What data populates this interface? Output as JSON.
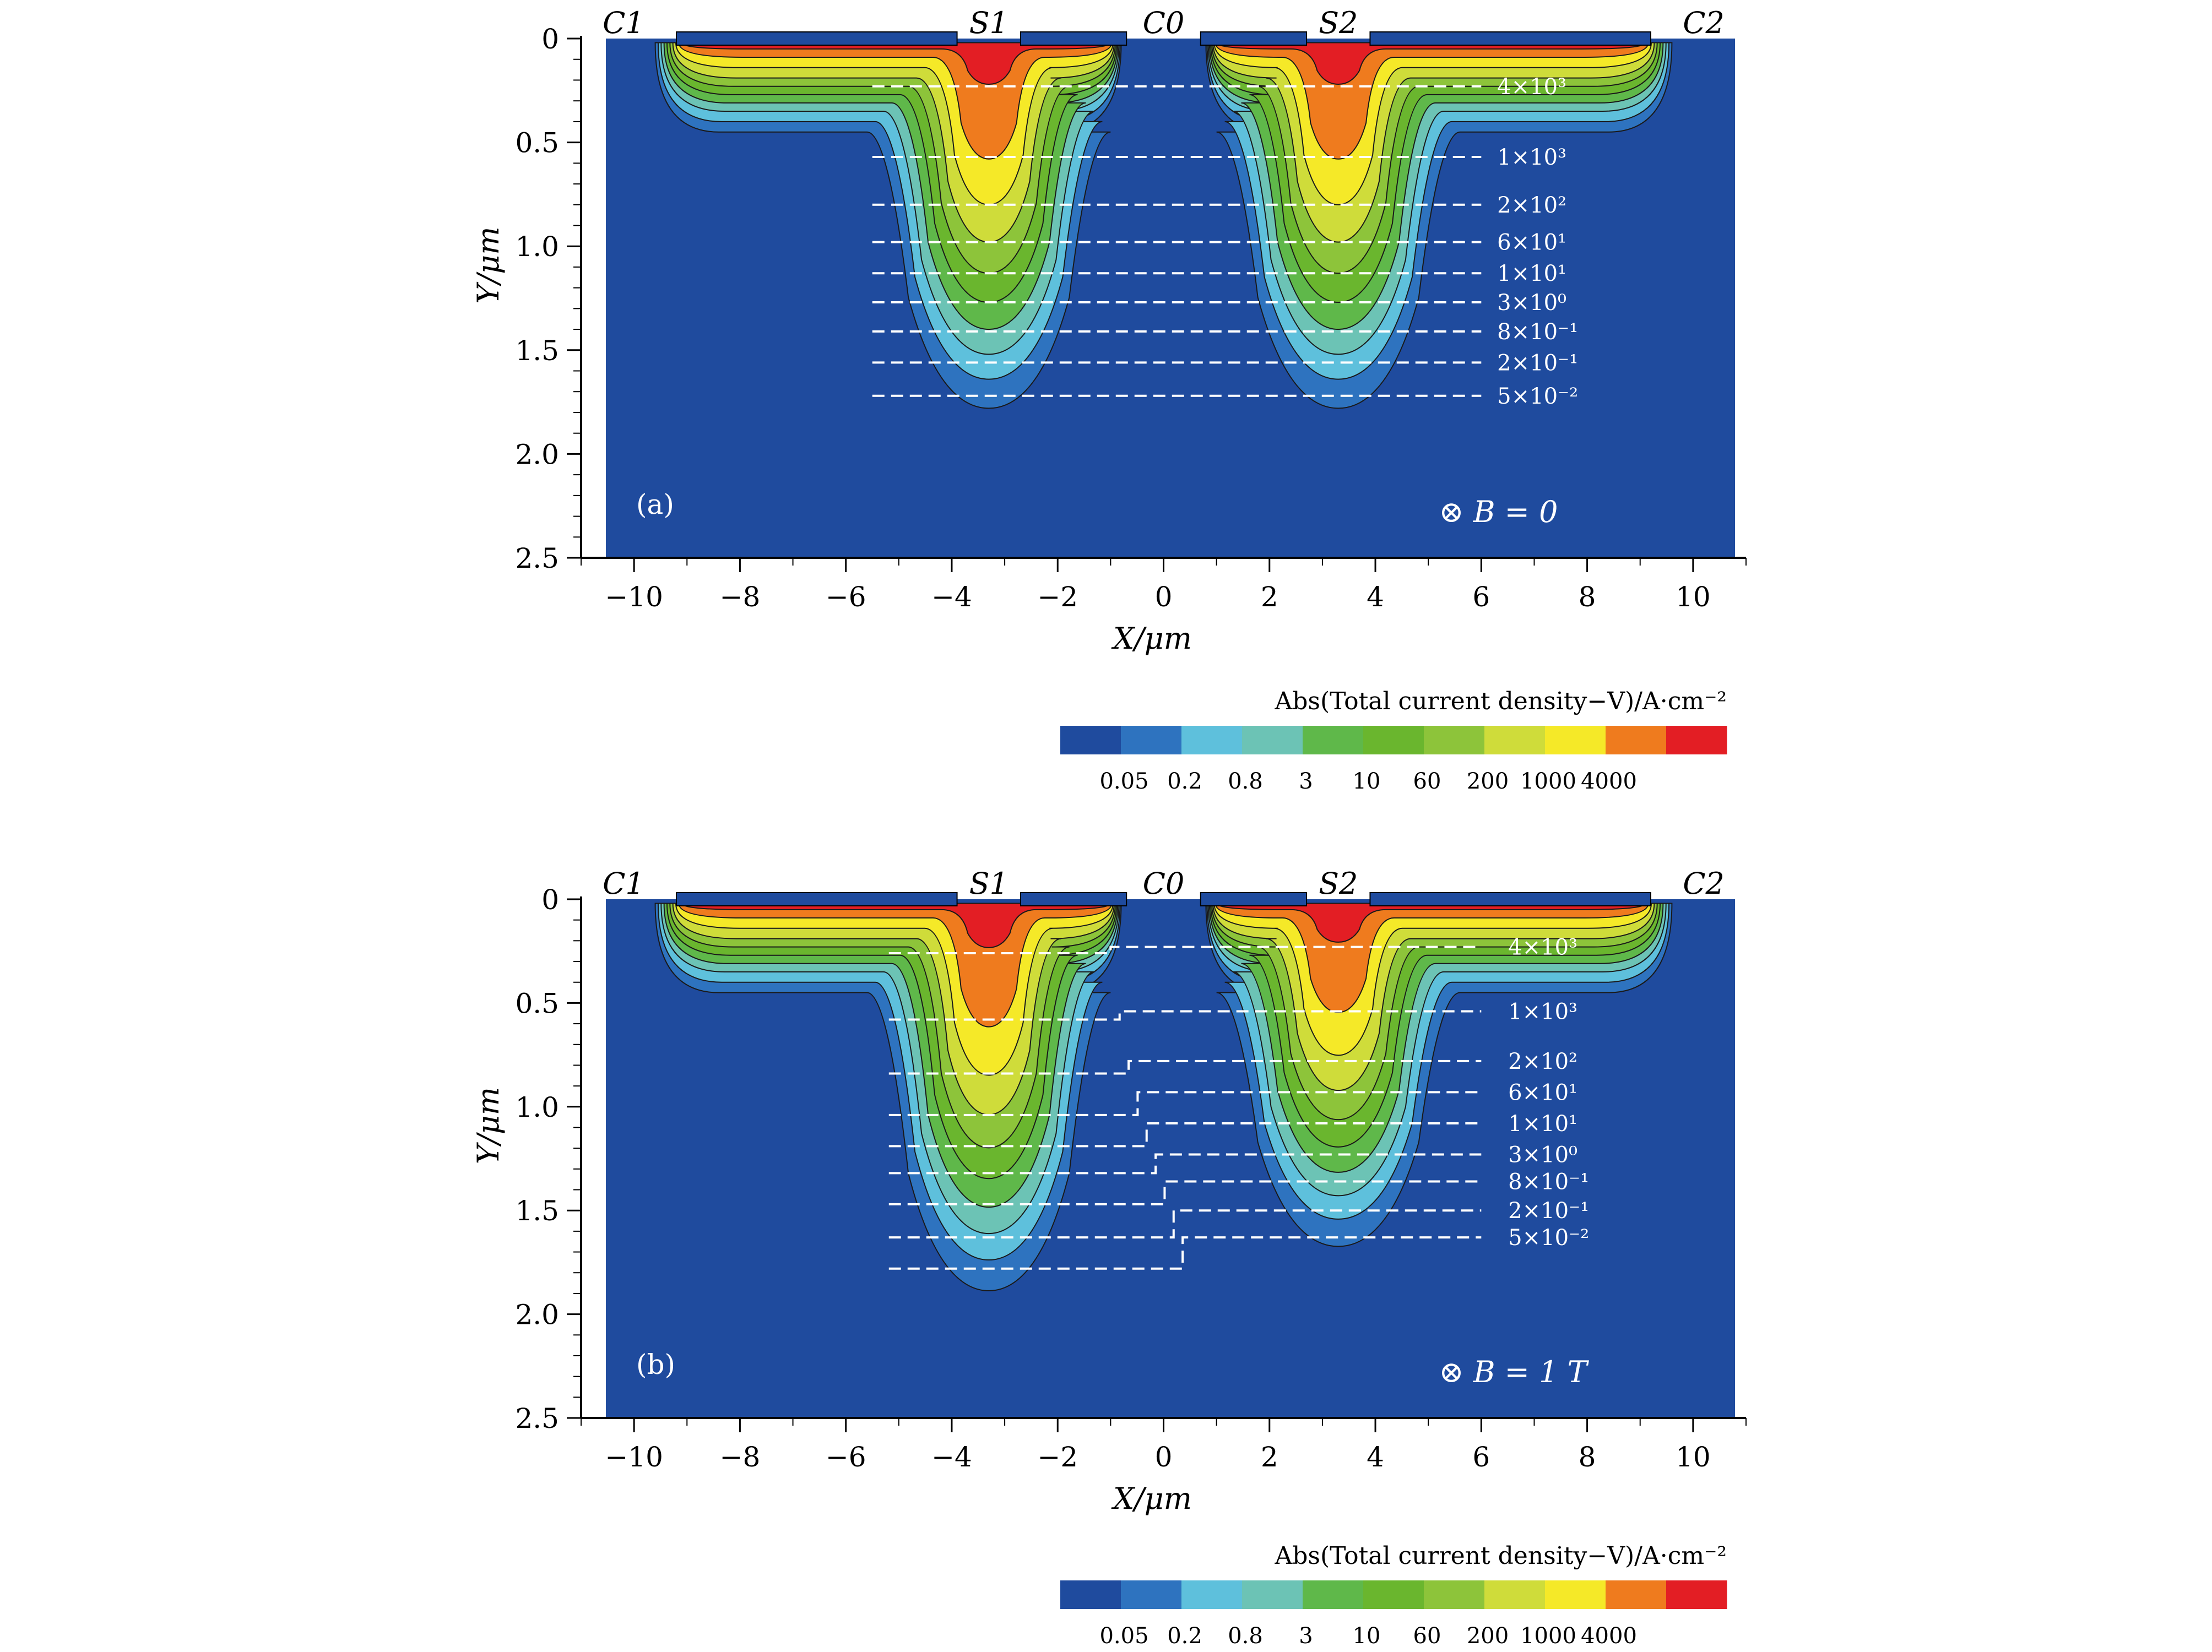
{
  "chart_data": [
    {
      "type": "heatmap",
      "panel_label": "(a)",
      "condition": "⊗ B = 0",
      "xlabel": "X/μm",
      "ylabel": "Y/μm",
      "xlim": [
        -11,
        11
      ],
      "ylim": [
        2.5,
        0
      ],
      "xticks": [
        -10,
        -8,
        -6,
        -4,
        -2,
        0,
        2,
        4,
        6,
        8,
        10
      ],
      "yticks": [
        0,
        0.5,
        1.0,
        1.5,
        2.0,
        2.5
      ],
      "contacts": [
        {
          "label": "C1",
          "x": -10.2
        },
        {
          "label": "S1",
          "x": -3.3
        },
        {
          "label": "C0",
          "x": 0
        },
        {
          "label": "S2",
          "x": 3.3
        },
        {
          "label": "C2",
          "x": 10.2
        }
      ],
      "contour_levels": [
        {
          "label": "4×10³",
          "y": 0.23
        },
        {
          "label": "1×10³",
          "y": 0.57
        },
        {
          "label": "2×10²",
          "y": 0.8
        },
        {
          "label": "6×10¹",
          "y": 0.98
        },
        {
          "label": "1×10¹",
          "y": 1.13
        },
        {
          "label": "3×10⁰",
          "y": 1.27
        },
        {
          "label": "8×10⁻¹",
          "y": 1.41
        },
        {
          "label": "2×10⁻¹",
          "y": 1.56
        },
        {
          "label": "5×10⁻²",
          "y": 1.72
        }
      ],
      "colorbar": {
        "title": "Abs(Total current density−V)/A·cm⁻²",
        "tick_labels": [
          "0.05",
          "0.2",
          "0.8",
          "3",
          "10",
          "60",
          "200",
          "1000",
          "4000"
        ],
        "colors": [
          "#1f4b9e",
          "#2e73bf",
          "#5ec0dc",
          "#6cc3b5",
          "#5fb84a",
          "#6ab62e",
          "#8dc43a",
          "#cfdc3a",
          "#f5e928",
          "#ef7b1e",
          "#e31e24"
        ]
      }
    },
    {
      "type": "heatmap",
      "panel_label": "(b)",
      "condition": "⊗ B = 1 T",
      "xlabel": "X/μm",
      "ylabel": "Y/μm",
      "xlim": [
        -11,
        11
      ],
      "ylim": [
        2.5,
        0
      ],
      "xticks": [
        -10,
        -8,
        -6,
        -4,
        -2,
        0,
        2,
        4,
        6,
        8,
        10
      ],
      "yticks": [
        0,
        0.5,
        1.0,
        1.5,
        2.0,
        2.5
      ],
      "contacts": [
        {
          "label": "C1",
          "x": -10.2
        },
        {
          "label": "S1",
          "x": -3.3
        },
        {
          "label": "C0",
          "x": 0
        },
        {
          "label": "S2",
          "x": 3.3
        },
        {
          "label": "C2",
          "x": 10.2
        }
      ],
      "contour_levels": [
        {
          "label": "4×10³",
          "y_left": 0.26,
          "y_right": 0.23
        },
        {
          "label": "1×10³",
          "y_left": 0.58,
          "y_right": 0.54
        },
        {
          "label": "2×10²",
          "y_left": 0.84,
          "y_right": 0.78
        },
        {
          "label": "6×10¹",
          "y_left": 1.04,
          "y_right": 0.93
        },
        {
          "label": "1×10¹",
          "y_left": 1.19,
          "y_right": 1.08
        },
        {
          "label": "3×10⁰",
          "y_left": 1.32,
          "y_right": 1.23
        },
        {
          "label": "8×10⁻¹",
          "y_left": 1.47,
          "y_right": 1.36
        },
        {
          "label": "2×10⁻¹",
          "y_left": 1.63,
          "y_right": 1.5
        },
        {
          "label": "5×10⁻²",
          "y_left": 1.78,
          "y_right": 1.63
        }
      ],
      "colorbar": {
        "title": "Abs(Total current density−V)/A·cm⁻²",
        "tick_labels": [
          "0.05",
          "0.2",
          "0.8",
          "3",
          "10",
          "60",
          "200",
          "1000",
          "4000"
        ],
        "colors": [
          "#1f4b9e",
          "#2e73bf",
          "#5ec0dc",
          "#6cc3b5",
          "#5fb84a",
          "#6ab62e",
          "#8dc43a",
          "#cfdc3a",
          "#f5e928",
          "#ef7b1e",
          "#e31e24"
        ]
      }
    }
  ]
}
